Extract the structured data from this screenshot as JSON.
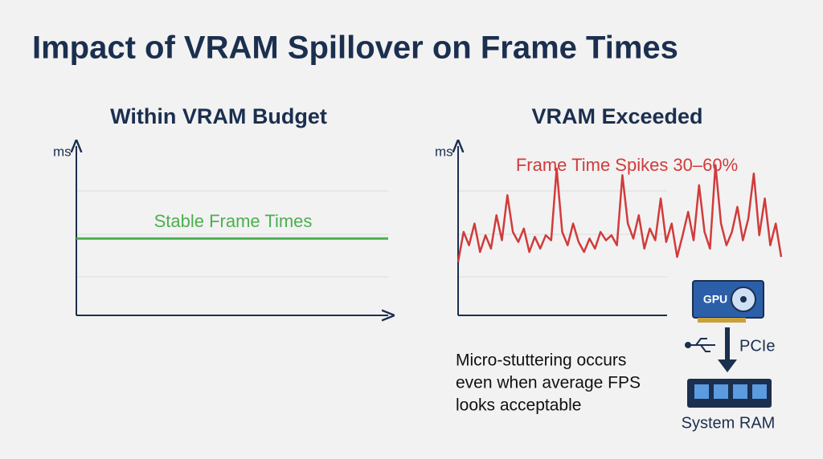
{
  "title": "Impact of VRAM Spillover on Frame Times",
  "chart_data": [
    {
      "type": "line",
      "title": "Within VRAM Budget",
      "ylabel": "ms",
      "annotation": "Stable Frame Times",
      "color": "#4caf50",
      "values": [
        46,
        46
      ],
      "ylim": [
        0,
        100
      ],
      "grid": true
    },
    {
      "type": "line",
      "title": "VRAM Exceeded",
      "ylabel": "ms",
      "annotation": "Frame Time Spikes 30–60%",
      "color": "#d13b3b",
      "values": [
        32,
        50,
        42,
        55,
        38,
        48,
        40,
        60,
        45,
        72,
        50,
        44,
        52,
        38,
        47,
        40,
        48,
        45,
        88,
        50,
        42,
        55,
        44,
        38,
        46,
        40,
        50,
        45,
        48,
        42,
        84,
        55,
        46,
        60,
        40,
        52,
        45,
        70,
        44,
        55,
        35,
        48,
        62,
        45,
        78,
        50,
        40,
        90,
        55,
        42,
        50,
        65,
        45,
        58,
        85,
        48,
        70,
        42,
        55,
        35
      ],
      "ylim": [
        0,
        100
      ],
      "grid": true
    }
  ],
  "note": [
    "Micro-stuttering occurs",
    "even when average FPS",
    "looks acceptable"
  ],
  "diagram": {
    "gpu": "GPU",
    "link": "PCIe",
    "ram": "System RAM"
  }
}
